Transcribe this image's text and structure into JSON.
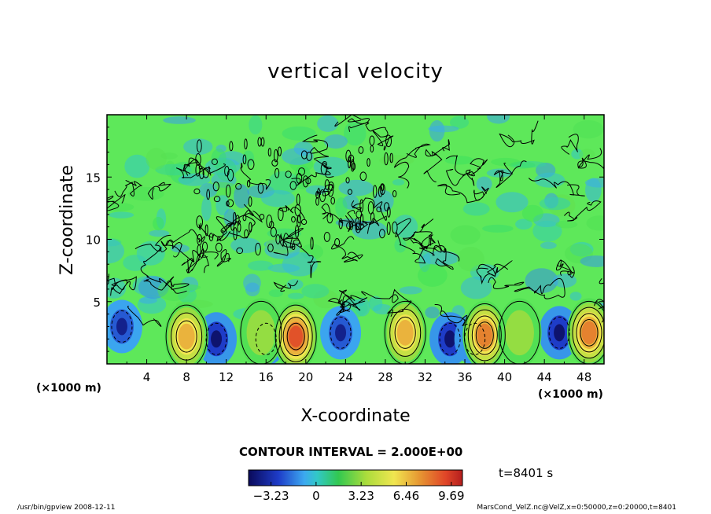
{
  "chart_data": {
    "type": "heatmap",
    "title": "vertical velocity",
    "xlabel": "X-coordinate",
    "ylabel": "Z-coordinate",
    "x_unit": "(×1000 m)",
    "z_unit": "(×1000 m)",
    "xlim": [
      0,
      50
    ],
    "ylim": [
      0,
      20
    ],
    "x_ticks": [
      4,
      8,
      12,
      16,
      20,
      24,
      28,
      32,
      36,
      40,
      44,
      48
    ],
    "y_ticks": [
      5,
      10,
      15
    ],
    "contour_interval": "CONTOUR INTERVAL = 2.000E+00",
    "colorbar": {
      "range": [
        -4.84,
        10.49
      ],
      "tick_values": [
        -3.23,
        0,
        3.23,
        6.46,
        9.69
      ],
      "tick_labels": [
        "−3.23",
        "0",
        "3.23",
        "6.46",
        "9.69"
      ]
    },
    "updraft_cores": [
      {
        "x": 8,
        "z": 2.2,
        "w": 6
      },
      {
        "x": 15.5,
        "z": 2.5,
        "w": 3
      },
      {
        "x": 19,
        "z": 2.2,
        "w": 9
      },
      {
        "x": 30,
        "z": 2.5,
        "w": 7
      },
      {
        "x": 38,
        "z": 2.3,
        "w": 8
      },
      {
        "x": 41.5,
        "z": 2.5,
        "w": 3
      },
      {
        "x": 48.5,
        "z": 2.5,
        "w": 8
      }
    ],
    "downdraft_cores": [
      {
        "x": 1.5,
        "z": 3,
        "w": -2.5
      },
      {
        "x": 11,
        "z": 2,
        "w": -3
      },
      {
        "x": 16,
        "z": 2,
        "w": -3
      },
      {
        "x": 23.5,
        "z": 2.5,
        "w": -2.5
      },
      {
        "x": 34.5,
        "z": 2,
        "w": -3
      },
      {
        "x": 37,
        "z": 2,
        "w": -3
      },
      {
        "x": 45.5,
        "z": 2.5,
        "w": -3
      }
    ]
  },
  "time": "t=8401 s",
  "footer_left": "/usr/bin/gpview   2008-12-11",
  "footer_right": "MarsCond_VelZ.nc@VelZ,x=0:50000,z=0:20000,t=8401"
}
